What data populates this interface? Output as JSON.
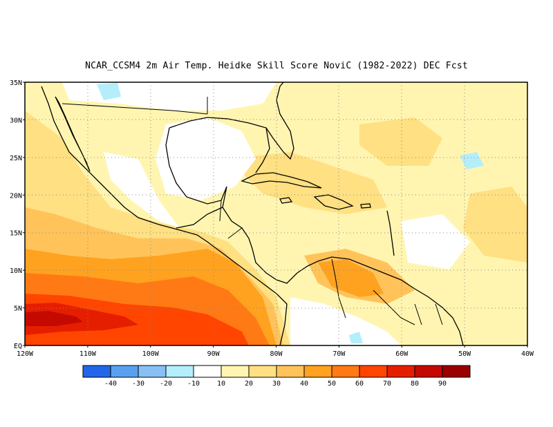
{
  "title": "NCAR_CCSM4  2m Air Temp. Heidke Skill Score NoviC (1982-2022) DEC Fcst",
  "map": {
    "lon_range": [
      -120,
      -40
    ],
    "lat_range": [
      0,
      35
    ],
    "grid": "dotted",
    "lat_ticks": [
      {
        "v": 35,
        "label": "35N"
      },
      {
        "v": 30,
        "label": "30N"
      },
      {
        "v": 25,
        "label": "25N"
      },
      {
        "v": 20,
        "label": "20N"
      },
      {
        "v": 15,
        "label": "15N"
      },
      {
        "v": 10,
        "label": "10N"
      },
      {
        "v": 5,
        "label": "5N"
      },
      {
        "v": 0,
        "label": "EQ"
      }
    ],
    "lon_ticks": [
      {
        "v": -120,
        "label": "120W"
      },
      {
        "v": -110,
        "label": "110W"
      },
      {
        "v": -100,
        "label": "100W"
      },
      {
        "v": -90,
        "label": "90W"
      },
      {
        "v": -80,
        "label": "80W"
      },
      {
        "v": -70,
        "label": "70W"
      },
      {
        "v": -60,
        "label": "60W"
      },
      {
        "v": -50,
        "label": "50W"
      },
      {
        "v": -40,
        "label": "40W"
      }
    ]
  },
  "colorbar": {
    "colors": [
      "#2166e8",
      "#5aa0f0",
      "#88bff5",
      "#b4eefa",
      "#ffffff",
      "#fff5b0",
      "#ffe082",
      "#ffc35a",
      "#ffa21f",
      "#ff7a14",
      "#ff4500",
      "#e61e00",
      "#c40a00",
      "#9a0000"
    ],
    "labels": [
      "-40",
      "-30",
      "-20",
      "-10",
      "10",
      "20",
      "30",
      "40",
      "50",
      "60",
      "70",
      "80",
      "90"
    ]
  },
  "field": {
    "description_levels": "skill score bins",
    "regions": [
      {
        "level": 20,
        "lons": [
          -120,
          -40
        ],
        "lats": [
          0,
          35
        ]
      },
      {
        "level": 30,
        "lons": [
          -120,
          -100
        ],
        "lats": [
          0,
          28
        ]
      },
      {
        "level": 40,
        "lons": [
          -120,
          -85
        ],
        "lats": [
          0,
          18
        ]
      },
      {
        "level": 50,
        "lons": [
          -120,
          -82
        ],
        "lats": [
          0,
          12
        ]
      },
      {
        "level": 60,
        "lons": [
          -120,
          -95
        ],
        "lats": [
          0,
          8
        ]
      },
      {
        "level": 70,
        "lons": [
          -120,
          -105
        ],
        "lats": [
          2,
          7
        ]
      },
      {
        "level": 80,
        "lons": [
          -120,
          -110
        ],
        "lats": [
          3,
          5
        ]
      },
      {
        "level": 40,
        "lons": [
          -75,
          -60
        ],
        "lats": [
          5,
          12
        ]
      },
      {
        "level": 30,
        "lons": [
          -80,
          -55
        ],
        "lats": [
          18,
          27
        ]
      },
      {
        "level": 30,
        "lons": [
          -50,
          -40
        ],
        "lats": [
          12,
          22
        ]
      }
    ]
  }
}
